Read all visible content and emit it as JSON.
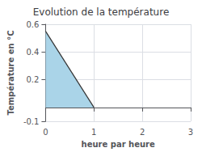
{
  "chart_data": {
    "type": "area",
    "title": "Evolution de la température",
    "xlabel": "heure par heure",
    "ylabel": "Température en °C",
    "x": [
      0,
      1
    ],
    "series": [
      {
        "type": "area",
        "color": "#aad4e8",
        "values": [
          0.55,
          0
        ]
      },
      {
        "type": "line",
        "color": "#333333",
        "values": [
          0.55,
          0
        ]
      }
    ],
    "xlim": [
      0,
      3
    ],
    "xticks": [
      0,
      1,
      2,
      3
    ],
    "ylim": [
      -0.1,
      0.6
    ],
    "yticks": [
      -0.1,
      0.2,
      0.4,
      0.6
    ],
    "grid": true
  }
}
